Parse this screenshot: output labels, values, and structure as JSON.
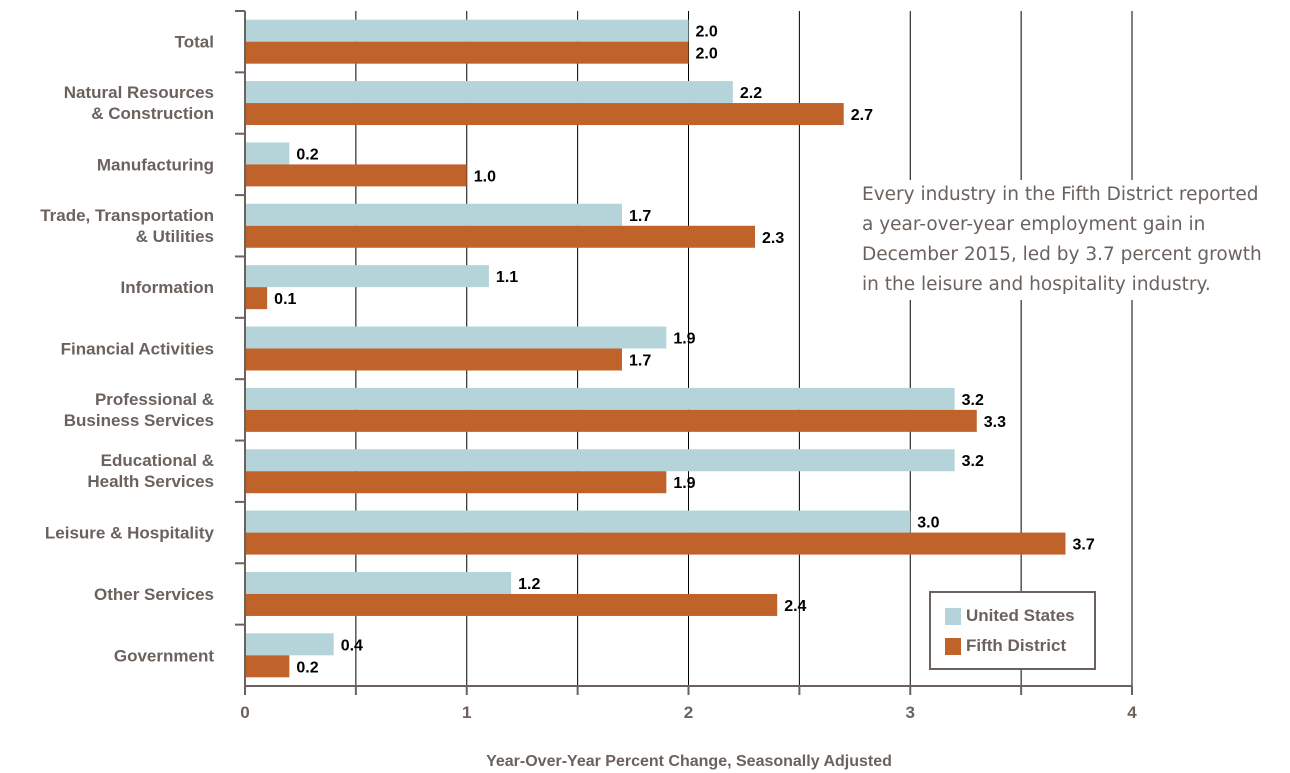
{
  "chart_data": {
    "type": "bar",
    "orientation": "horizontal",
    "categories": [
      [
        "Total"
      ],
      [
        "Natural Resources",
        "& Construction"
      ],
      [
        "Manufacturing"
      ],
      [
        "Trade, Transportation",
        "& Utilities"
      ],
      [
        "Information"
      ],
      [
        "Financial Activities"
      ],
      [
        "Professional &",
        "Business Services"
      ],
      [
        "Educational &",
        "Health Services"
      ],
      [
        "Leisure & Hospitality"
      ],
      [
        "Other Services"
      ],
      [
        "Government"
      ]
    ],
    "series": [
      {
        "name": "United States",
        "color": "#b5d4da",
        "values": [
          2.0,
          2.2,
          0.2,
          1.7,
          1.1,
          1.9,
          3.2,
          3.2,
          3.0,
          1.2,
          0.4
        ],
        "labels": [
          "2.0",
          "2.2",
          "0.2",
          "1.7",
          "1.1",
          "1.9",
          "3.2",
          "3.2",
          "3.0",
          "1.2",
          "0.4"
        ]
      },
      {
        "name": "Fifth District",
        "color": "#c0632a",
        "values": [
          2.0,
          2.7,
          1.0,
          2.3,
          0.1,
          1.7,
          3.3,
          1.9,
          3.7,
          2.4,
          0.2
        ],
        "labels": [
          "2.0",
          "2.7",
          "1.0",
          "2.3",
          "0.1",
          "1.7",
          "3.3",
          "1.9",
          "3.7",
          "2.4",
          "0.2"
        ]
      }
    ],
    "xlim": [
      0,
      4
    ],
    "xticks": [
      0,
      1,
      2,
      3,
      4
    ],
    "xlabel": "Year-Over-Year Percent Change, Seasonally Adjusted",
    "grid": "vertical",
    "gridlines": [
      0.5,
      1,
      1.5,
      2,
      2.5,
      3,
      3.5,
      4
    ],
    "legend_position": "bottom-right",
    "annotation": [
      "Every industry in the Fifth District reported",
      "a year-over-year employment gain in",
      "December 2015, led by 3.7 percent growth",
      "in the leisure and hospitality industry."
    ],
    "axis_color": "#6b625d",
    "grid_color": "#000000"
  },
  "legend": {
    "items": [
      {
        "label": "United States",
        "color": "#b5d4da"
      },
      {
        "label": "Fifth District",
        "color": "#c0632a"
      }
    ]
  }
}
